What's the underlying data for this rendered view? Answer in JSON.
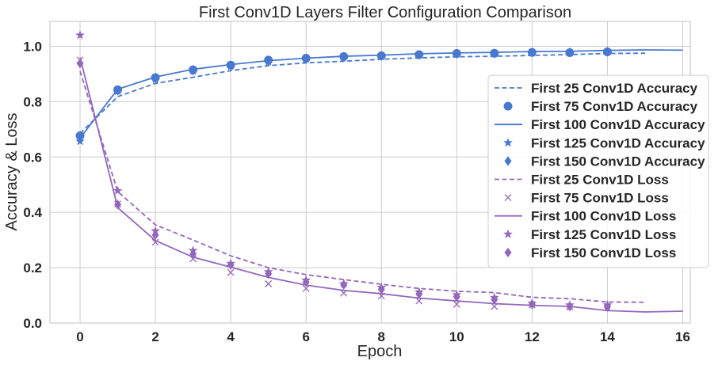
{
  "chart_data": {
    "type": "line",
    "title": "First Conv1D Layers Filter Configuration Comparison",
    "xlabel": "Epoch",
    "ylabel": "Accuracy & Loss",
    "xlim": [
      -0.8,
      16.2
    ],
    "ylim": [
      0.0,
      1.09
    ],
    "xticks": [
      0,
      2,
      4,
      6,
      8,
      10,
      12,
      14,
      16
    ],
    "yticks": [
      0.0,
      0.2,
      0.4,
      0.6,
      0.8,
      1.0
    ],
    "grid": true,
    "legend_position": "center-right",
    "colors": {
      "accuracy": "#4878cf",
      "loss": "#9467bd"
    },
    "series": [
      {
        "name": "First 25 Conv1D Accuracy",
        "kind": "line",
        "dash": "dashed",
        "color": "accuracy",
        "x": [
          0,
          1,
          2,
          3,
          4,
          5,
          6,
          7,
          8,
          9,
          10,
          11,
          12,
          13,
          14,
          15
        ],
        "values": [
          0.685,
          0.818,
          0.866,
          0.888,
          0.912,
          0.93,
          0.94,
          0.946,
          0.953,
          0.958,
          0.962,
          0.964,
          0.967,
          0.97,
          0.974,
          0.975
        ]
      },
      {
        "name": "First 75 Conv1D Accuracy",
        "kind": "marker",
        "marker": "circle",
        "color": "accuracy",
        "x": [
          0,
          1,
          2,
          3,
          4,
          5,
          6,
          7,
          8,
          9,
          10,
          11,
          12,
          13,
          14
        ],
        "values": [
          0.677,
          0.843,
          0.887,
          0.915,
          0.932,
          0.95,
          0.957,
          0.963,
          0.966,
          0.97,
          0.974,
          0.975,
          0.978,
          0.977,
          0.98
        ]
      },
      {
        "name": "First 100 Conv1D Accuracy",
        "kind": "line",
        "dash": "solid",
        "color": "accuracy",
        "x": [
          0,
          1,
          2,
          3,
          4,
          5,
          6,
          7,
          8,
          9,
          10,
          11,
          12,
          13,
          14,
          15,
          16
        ],
        "values": [
          0.668,
          0.845,
          0.889,
          0.917,
          0.934,
          0.948,
          0.957,
          0.964,
          0.968,
          0.973,
          0.976,
          0.978,
          0.981,
          0.982,
          0.985,
          0.987,
          0.986
        ]
      },
      {
        "name": "First 125 Conv1D Accuracy",
        "kind": "marker",
        "marker": "star",
        "color": "accuracy",
        "x": [
          0,
          1,
          2,
          3,
          4,
          5,
          6,
          7,
          8,
          9,
          10,
          11,
          12,
          13,
          14
        ],
        "values": [
          0.657,
          0.838,
          0.881,
          0.91,
          0.928,
          0.944,
          0.954,
          0.96,
          0.964,
          0.968,
          0.972,
          0.973,
          0.977,
          0.979,
          0.982
        ]
      },
      {
        "name": "First 150 Conv1D Accuracy",
        "kind": "marker",
        "marker": "diamond",
        "color": "accuracy",
        "x": [
          0,
          1,
          2,
          3,
          4,
          5,
          6,
          7,
          8,
          9,
          10,
          11,
          12,
          13,
          14
        ],
        "values": [
          0.672,
          0.84,
          0.885,
          0.912,
          0.93,
          0.946,
          0.955,
          0.961,
          0.965,
          0.969,
          0.973,
          0.974,
          0.977,
          0.978,
          0.98
        ]
      },
      {
        "name": "First 25 Conv1D Loss",
        "kind": "line",
        "dash": "dashed",
        "color": "loss",
        "x": [
          0,
          1,
          2,
          3,
          4,
          5,
          6,
          7,
          8,
          9,
          10,
          11,
          12,
          13,
          14,
          15
        ],
        "values": [
          0.91,
          0.475,
          0.355,
          0.3,
          0.243,
          0.2,
          0.175,
          0.157,
          0.14,
          0.125,
          0.115,
          0.11,
          0.093,
          0.088,
          0.076,
          0.075
        ]
      },
      {
        "name": "First 75 Conv1D Loss",
        "kind": "marker",
        "marker": "x",
        "color": "loss",
        "x": [
          0,
          1,
          2,
          3,
          4,
          5,
          6,
          7,
          8,
          9,
          10,
          11,
          12,
          13,
          14
        ],
        "values": [
          0.95,
          0.43,
          0.292,
          0.232,
          0.183,
          0.142,
          0.125,
          0.108,
          0.098,
          0.08,
          0.068,
          0.06,
          0.065,
          0.058,
          0.055
        ]
      },
      {
        "name": "First 100 Conv1D Loss",
        "kind": "line",
        "dash": "solid",
        "color": "loss",
        "x": [
          0,
          1,
          2,
          3,
          4,
          5,
          6,
          7,
          8,
          9,
          10,
          11,
          12,
          13,
          14,
          15,
          16
        ],
        "values": [
          0.96,
          0.417,
          0.298,
          0.238,
          0.202,
          0.165,
          0.137,
          0.118,
          0.106,
          0.09,
          0.08,
          0.07,
          0.064,
          0.06,
          0.045,
          0.04,
          0.043
        ]
      },
      {
        "name": "First 125 Conv1D Loss",
        "kind": "marker",
        "marker": "star",
        "color": "loss",
        "x": [
          0,
          1,
          2,
          3,
          4,
          5,
          6,
          7,
          8,
          9,
          10,
          11,
          12,
          13,
          14
        ],
        "values": [
          1.04,
          0.478,
          0.333,
          0.262,
          0.215,
          0.185,
          0.155,
          0.142,
          0.128,
          0.112,
          0.102,
          0.092,
          0.072,
          0.065,
          0.065
        ]
      },
      {
        "name": "First 150 Conv1D Loss",
        "kind": "marker",
        "marker": "diamond",
        "color": "loss",
        "x": [
          0,
          1,
          2,
          3,
          4,
          5,
          6,
          7,
          8,
          9,
          10,
          11,
          12,
          13,
          14
        ],
        "values": [
          0.938,
          0.428,
          0.318,
          0.25,
          0.21,
          0.178,
          0.148,
          0.138,
          0.122,
          0.105,
          0.095,
          0.085,
          0.068,
          0.06,
          0.058
        ]
      }
    ]
  }
}
